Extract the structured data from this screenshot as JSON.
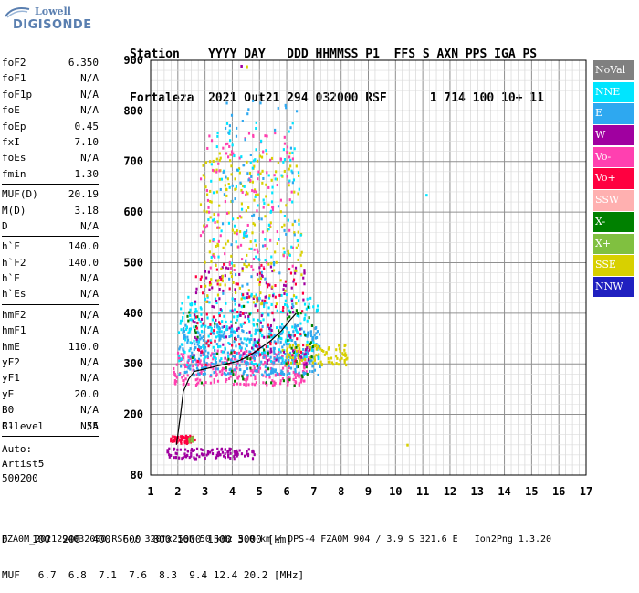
{
  "logo": {
    "line1": "Lowell",
    "line2": "DIGISONDE"
  },
  "header": {
    "line1": "Station    YYYY DAY   DDD HHMMSS P1  FFS S AXN PPS IGA PS",
    "line2": "Fortaleza  2021 Out21 294 032000 RSF      1 714 100 10+ 11"
  },
  "params_groups": [
    [
      {
        "name": "foF2",
        "value": "6.350"
      },
      {
        "name": "foF1",
        "value": "N/A"
      },
      {
        "name": "foF1p",
        "value": "N/A"
      },
      {
        "name": "foE",
        "value": "N/A"
      },
      {
        "name": "foEp",
        "value": "0.45"
      },
      {
        "name": "fxI",
        "value": "7.10"
      },
      {
        "name": "foEs",
        "value": "N/A"
      },
      {
        "name": "fmin",
        "value": "1.30"
      }
    ],
    [
      {
        "name": "MUF(D)",
        "value": "20.19"
      },
      {
        "name": "M(D)",
        "value": "3.18"
      },
      {
        "name": "D",
        "value": "N/A"
      }
    ],
    [
      {
        "name": "h`F",
        "value": "140.0"
      },
      {
        "name": "h`F2",
        "value": "140.0"
      },
      {
        "name": "h`E",
        "value": "N/A"
      },
      {
        "name": "h`Es",
        "value": "N/A"
      }
    ],
    [
      {
        "name": "hmF2",
        "value": "N/A"
      },
      {
        "name": "hmF1",
        "value": "N/A"
      },
      {
        "name": "hmE",
        "value": "110.0"
      },
      {
        "name": "yF2",
        "value": "N/A"
      },
      {
        "name": "yF1",
        "value": "N/A"
      },
      {
        "name": "yE",
        "value": "20.0"
      },
      {
        "name": "B0",
        "value": "N/A"
      },
      {
        "name": "B1",
        "value": "N/A"
      }
    ]
  ],
  "clevel": {
    "name": "C-level",
    "value": "55"
  },
  "auto": {
    "line1": "Auto:",
    "line2": "Artist5",
    "line3": "500200"
  },
  "legend": [
    {
      "label": "NoVal",
      "color": "#808080"
    },
    {
      "label": "NNE",
      "color": "#00e5ff"
    },
    {
      "label": "E",
      "color": "#2ea8f0"
    },
    {
      "label": "W",
      "color": "#a000a0"
    },
    {
      "label": "Vo-",
      "color": "#ff40b0"
    },
    {
      "label": "Vo+",
      "color": "#ff0040"
    },
    {
      "label": "SSW",
      "color": "#ffb0b0"
    },
    {
      "label": "X-",
      "color": "#008000"
    },
    {
      "label": "X+",
      "color": "#80c040"
    },
    {
      "label": "SSE",
      "color": "#d8d000"
    },
    {
      "label": "NNW",
      "color": "#2020c0"
    }
  ],
  "chart_data": {
    "type": "scatter",
    "xlim": [
      1,
      17
    ],
    "ylim": [
      80,
      900
    ],
    "x_ticks": [
      1,
      2,
      3,
      4,
      5,
      6,
      7,
      8,
      9,
      10,
      11,
      12,
      13,
      14,
      15,
      16,
      17
    ],
    "y_ticks": [
      80,
      200,
      300,
      400,
      500,
      600,
      700,
      800,
      900
    ],
    "grid": true,
    "trace": {
      "x": [
        1.95,
        2.1,
        2.2,
        2.4,
        2.6,
        3.0,
        3.4,
        3.8,
        4.2,
        4.6,
        5.0,
        5.4,
        5.8,
        6.1,
        6.35
      ],
      "y": [
        140,
        200,
        245,
        270,
        285,
        290,
        295,
        300,
        305,
        315,
        330,
        345,
        365,
        385,
        400
      ]
    },
    "clusters": [
      {
        "x": [
          1.7,
          2.6
        ],
        "y": [
          145,
          160
        ],
        "color": "#ff0040",
        "n": 60
      },
      {
        "x": [
          2.3,
          2.6
        ],
        "y": [
          148,
          158
        ],
        "color": "#80c040",
        "n": 10
      },
      {
        "x": [
          1.5,
          4.8
        ],
        "y": [
          115,
          135
        ],
        "color": "#a000a0",
        "n": 110
      },
      {
        "x": [
          1.8,
          6.8
        ],
        "y": [
          260,
          330
        ],
        "color": "#ff40b0",
        "n": 300
      },
      {
        "x": [
          2.0,
          7.2
        ],
        "y": [
          280,
          380
        ],
        "color": "#2ea8f0",
        "n": 400
      },
      {
        "x": [
          2.0,
          7.2
        ],
        "y": [
          300,
          440
        ],
        "color": "#00e5ff",
        "n": 250
      },
      {
        "x": [
          5.8,
          8.2
        ],
        "y": [
          300,
          340
        ],
        "color": "#d8d000",
        "n": 90
      },
      {
        "x": [
          2.2,
          7.0
        ],
        "y": [
          250,
          420
        ],
        "color": "#008000",
        "n": 70
      },
      {
        "x": [
          2.5,
          6.8
        ],
        "y": [
          300,
          500
        ],
        "color": "#a000a0",
        "n": 130
      },
      {
        "x": [
          2.8,
          6.6
        ],
        "y": [
          420,
          720
        ],
        "color": "#d8d000",
        "n": 200
      },
      {
        "x": [
          2.8,
          6.2
        ],
        "y": [
          480,
          760
        ],
        "color": "#ff40b0",
        "n": 110
      },
      {
        "x": [
          3.0,
          6.5
        ],
        "y": [
          500,
          780
        ],
        "color": "#00e5ff",
        "n": 90
      },
      {
        "x": [
          3.5,
          6.4
        ],
        "y": [
          400,
          830
        ],
        "color": "#2ea8f0",
        "n": 70
      },
      {
        "x": [
          2.6,
          6.6
        ],
        "y": [
          300,
          500
        ],
        "color": "#ff0040",
        "n": 90
      }
    ],
    "isolated_points": [
      {
        "x": 10.4,
        "y": 142,
        "color": "#d8d000"
      },
      {
        "x": 11.1,
        "y": 636,
        "color": "#00e5ff"
      },
      {
        "x": 4.3,
        "y": 891,
        "color": "#a000a0"
      },
      {
        "x": 4.5,
        "y": 890,
        "color": "#d8d000"
      }
    ]
  },
  "d_table": {
    "line1": "D    100  200  400  600  800 1000 1500 3000 [km]",
    "line2": "MUF   6.7  6.8  7.1  7.6  8.3  9.4 12.4 20.2 [MHz]"
  },
  "footer": "FZA0M_2021294032000.RSF / 320fx256h 50 kHz 5.0 km / DPS-4 FZA0M 904 / 3.9 S 321.6 E   Ion2Png 1.3.20"
}
